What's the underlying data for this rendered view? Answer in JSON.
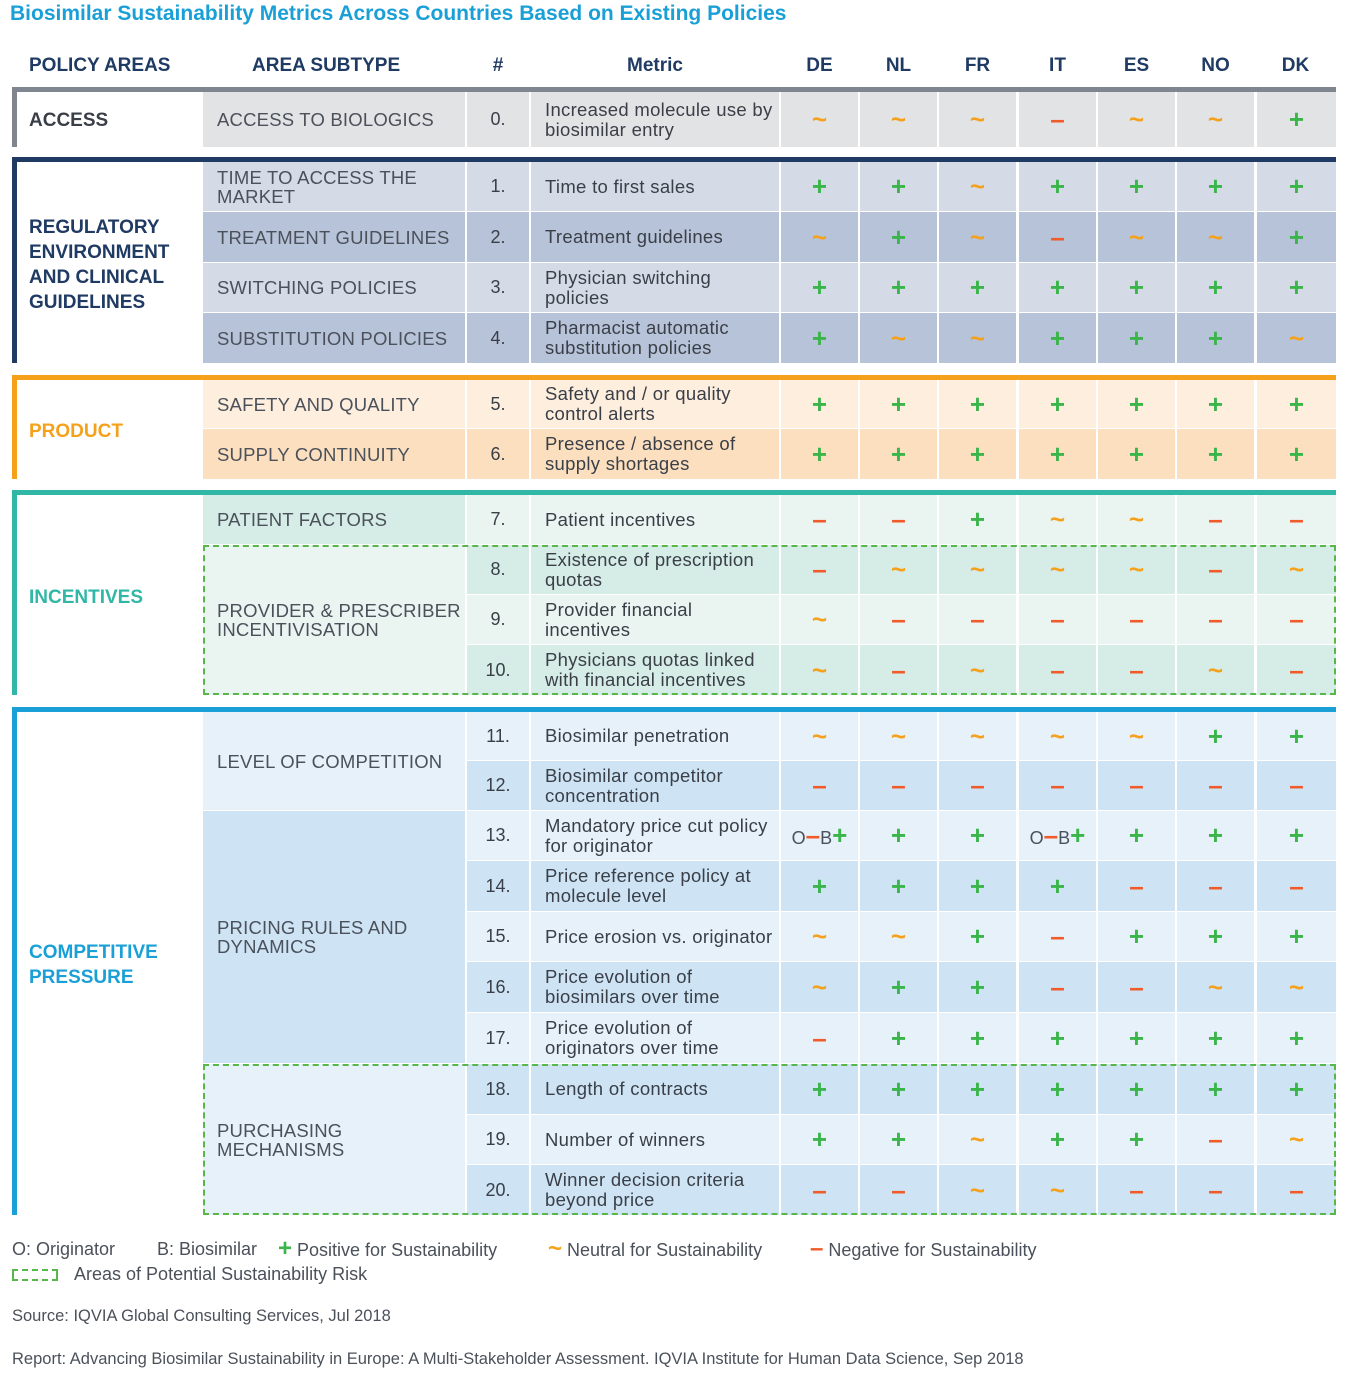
{
  "title": "Biosimilar Sustainability Metrics Across Countries Based on Existing Policies",
  "headers": {
    "policy_areas": "POLICY AREAS",
    "area_subtype": "AREA SUBTYPE",
    "num": "#",
    "metric": "Metric",
    "countries": [
      "DE",
      "NL",
      "FR",
      "IT",
      "ES",
      "NO",
      "DK"
    ]
  },
  "symbols": {
    "plus": "+",
    "tilde": "~",
    "minus": "–"
  },
  "areas": [
    {
      "name": "ACCESS",
      "color": "#7f868f"
    },
    {
      "name": "REGULATORY ENVIRONMENT AND CLINICAL GUIDELINES",
      "color": "#1f3a63"
    },
    {
      "name": "PRODUCT",
      "color": "#f5a11c"
    },
    {
      "name": "INCENTIVES",
      "color": "#30b7a6"
    },
    {
      "name": "COMPETITIVE PRESSURE",
      "color": "#1aa0d6"
    }
  ],
  "subtypes": [
    "ACCESS TO BIOLOGICS",
    "TIME TO ACCESS THE MARKET",
    "TREATMENT GUIDELINES",
    "SWITCHING POLICIES",
    "SUBSTITUTION POLICIES",
    "SAFETY AND QUALITY",
    "SUPPLY CONTINUITY",
    "PATIENT FACTORS",
    "PROVIDER & PRESCRIBER INCENTIVISATION",
    "LEVEL OF COMPETITION",
    "PRICING RULES AND DYNAMICS",
    "PURCHASING MECHANISMS"
  ],
  "rows": [
    {
      "num": "0.",
      "metric": "Increased molecule use by biosimilar entry",
      "values": [
        "~",
        "~",
        "~",
        "-",
        "~",
        "~",
        "+"
      ]
    },
    {
      "num": "1.",
      "metric": "Time to first sales",
      "values": [
        "+",
        "+",
        "~",
        "+",
        "+",
        "+",
        "+"
      ]
    },
    {
      "num": "2.",
      "metric": "Treatment guidelines",
      "values": [
        "~",
        "+",
        "~",
        "-",
        "~",
        "~",
        "+"
      ]
    },
    {
      "num": "3.",
      "metric": "Physician switching policies",
      "values": [
        "+",
        "+",
        "+",
        "+",
        "+",
        "+",
        "+"
      ]
    },
    {
      "num": "4.",
      "metric": "Pharmacist automatic substitution policies",
      "values": [
        "+",
        "~",
        "~",
        "+",
        "+",
        "+",
        "~"
      ]
    },
    {
      "num": "5.",
      "metric": "Safety and / or quality control alerts",
      "values": [
        "+",
        "+",
        "+",
        "+",
        "+",
        "+",
        "+"
      ]
    },
    {
      "num": "6.",
      "metric": "Presence / absence of supply shortages",
      "values": [
        "+",
        "+",
        "+",
        "+",
        "+",
        "+",
        "+"
      ]
    },
    {
      "num": "7.",
      "metric": "Patient incentives",
      "values": [
        "-",
        "-",
        "+",
        "~",
        "~",
        "-",
        "-"
      ]
    },
    {
      "num": "8.",
      "metric": "Existence of prescription quotas",
      "values": [
        "-",
        "~",
        "~",
        "~",
        "~",
        "-",
        "~"
      ]
    },
    {
      "num": "9.",
      "metric": "Provider financial incentives",
      "values": [
        "~",
        "-",
        "-",
        "-",
        "-",
        "-",
        "-"
      ]
    },
    {
      "num": "10.",
      "metric": "Physicians quotas linked with financial incentives",
      "values": [
        "~",
        "-",
        "~",
        "-",
        "-",
        "~",
        "-"
      ]
    },
    {
      "num": "11.",
      "metric": "Biosimilar penetration",
      "values": [
        "~",
        "~",
        "~",
        "~",
        "~",
        "+",
        "+"
      ]
    },
    {
      "num": "12.",
      "metric": "Biosimilar competitor concentration",
      "values": [
        "-",
        "-",
        "-",
        "-",
        "-",
        "-",
        "-"
      ]
    },
    {
      "num": "13.",
      "metric": "Mandatory price cut policy for originator",
      "values": [
        "O-B+",
        "+",
        "+",
        "O-B+",
        "+",
        "+",
        "+"
      ]
    },
    {
      "num": "14.",
      "metric": "Price reference policy at molecule level",
      "values": [
        "+",
        "+",
        "+",
        "+",
        "-",
        "-",
        "-"
      ]
    },
    {
      "num": "15.",
      "metric": "Price erosion vs. originator",
      "values": [
        "~",
        "~",
        "+",
        "-",
        "+",
        "+",
        "+"
      ]
    },
    {
      "num": "16.",
      "metric": "Price evolution of biosimilars over time",
      "values": [
        "~",
        "+",
        "+",
        "-",
        "-",
        "~",
        "~"
      ]
    },
    {
      "num": "17.",
      "metric": "Price evolution of originators over time",
      "values": [
        "-",
        "+",
        "+",
        "+",
        "+",
        "+",
        "+"
      ]
    },
    {
      "num": "18.",
      "metric": "Length of contracts",
      "values": [
        "+",
        "+",
        "+",
        "+",
        "+",
        "+",
        "+"
      ]
    },
    {
      "num": "19.",
      "metric": "Number of winners",
      "values": [
        "+",
        "+",
        "~",
        "+",
        "+",
        "-",
        "~"
      ]
    },
    {
      "num": "20.",
      "metric": "Winner decision criteria beyond price",
      "values": [
        "-",
        "-",
        "~",
        "~",
        "-",
        "-",
        "-"
      ]
    }
  ],
  "ob_labels": {
    "o": "O",
    "b": "B"
  },
  "legend": {
    "originator": "O: Originator",
    "biosimilar": "B: Biosimilar",
    "positive": "Positive for Sustainability",
    "neutral": "Neutral for Sustainability",
    "negative": "Negative for Sustainability",
    "risk": "Areas of Potential Sustainability Risk"
  },
  "source": "Source: IQVIA Global Consulting Services, Jul 2018",
  "report": "Report: Advancing Biosimilar Sustainability in Europe: A Multi-Stakeholder Assessment. IQVIA Institute for Human Data Science, Sep 2018"
}
